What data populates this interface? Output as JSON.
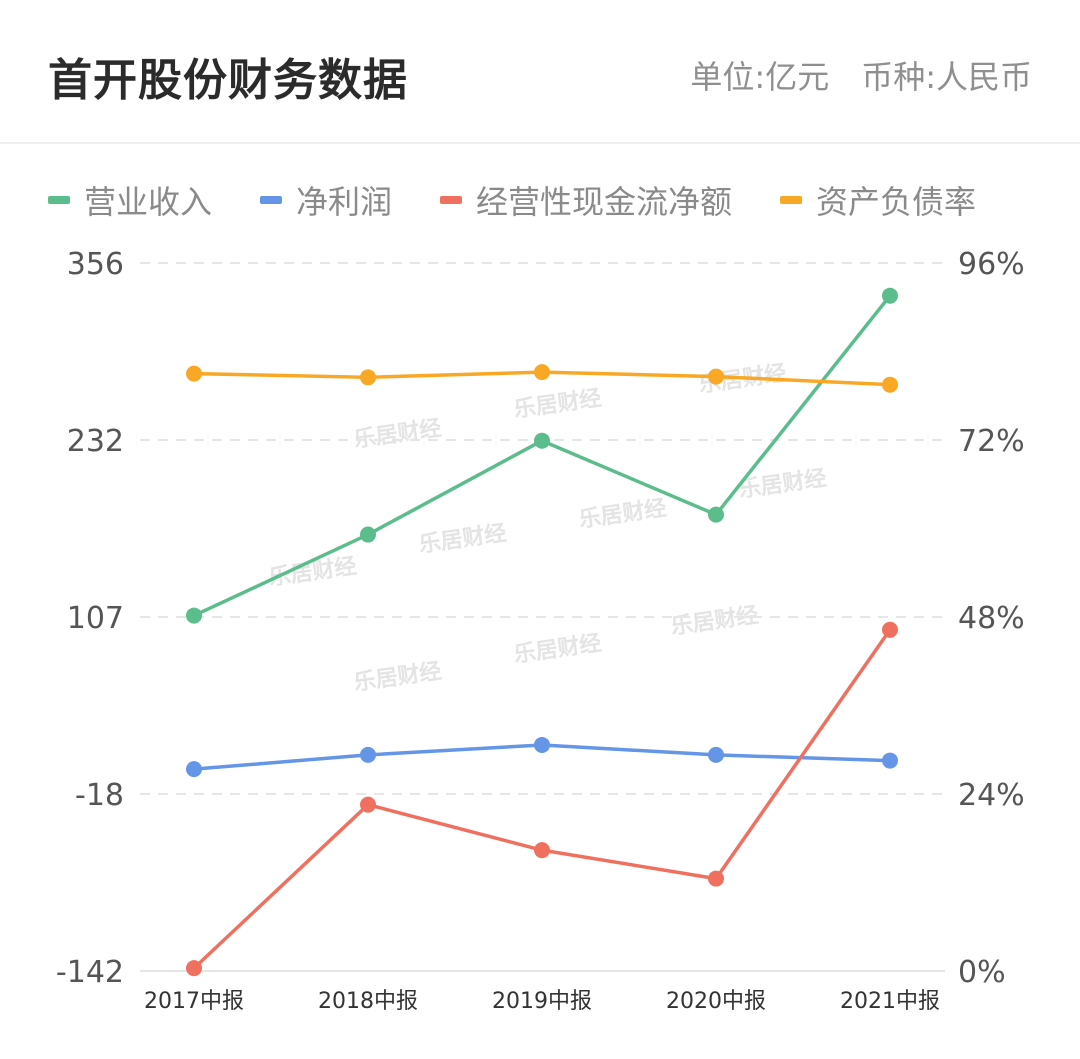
{
  "header": {
    "title": "首开股份财务数据",
    "unit": "单位:亿元",
    "currency": "币种:人民币"
  },
  "legend": [
    {
      "label": "营业收入",
      "color": "#5cbd8c"
    },
    {
      "label": "净利润",
      "color": "#6495e6"
    },
    {
      "label": "经营性现金流净额",
      "color": "#f0705f"
    },
    {
      "label": "资产负债率",
      "color": "#f9a825"
    }
  ],
  "watermark": "乐居财经",
  "chart_data": {
    "type": "line",
    "categories": [
      "2017中报",
      "2018中报",
      "2019中报",
      "2020中报",
      "2021中报"
    ],
    "y_left": {
      "ticks": [
        "356",
        "232",
        "107",
        "-18",
        "-142"
      ],
      "range": [
        -142,
        356
      ]
    },
    "y_right": {
      "ticks": [
        "96%",
        "72%",
        "48%",
        "24%",
        "0%"
      ],
      "range": [
        0,
        96
      ]
    },
    "grid": true,
    "legend_position": "top",
    "series": [
      {
        "name": "营业收入",
        "axis": "left",
        "color": "#5cbd8c",
        "values": [
          108,
          165,
          231,
          179,
          333
        ]
      },
      {
        "name": "净利润",
        "axis": "left",
        "color": "#6495e6",
        "values": [
          0,
          10,
          17,
          10,
          6
        ]
      },
      {
        "name": "经营性现金流净额",
        "axis": "left",
        "color": "#f0705f",
        "values": [
          -140,
          -25,
          -57,
          -77,
          98
        ]
      },
      {
        "name": "资产负债率",
        "axis": "right",
        "color": "#f9a825",
        "values": [
          81,
          80.5,
          81.2,
          80.6,
          79.5
        ]
      }
    ]
  }
}
